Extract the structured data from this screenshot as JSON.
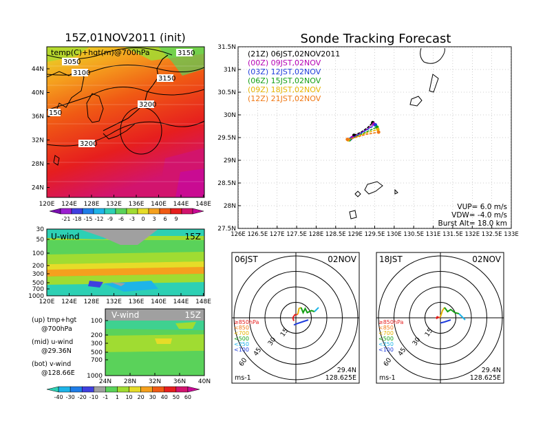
{
  "left_panel": {
    "title": "15Z,01NOV2011 (init)",
    "map_label": "temp(C)+hgt(m)@700hPa",
    "lon_ticks": [
      "120E",
      "124E",
      "128E",
      "132E",
      "136E",
      "140E",
      "144E",
      "148E"
    ],
    "lat_ticks": [
      "44N",
      "40N",
      "36N",
      "32N",
      "28N",
      "24N"
    ],
    "contour_labels": [
      "3050",
      "3100",
      "3150",
      "3200",
      "3200",
      "150",
      "3150"
    ],
    "temp_colorbar": {
      "labels": [
        "-21",
        "-18",
        "-15",
        "-12",
        "-9",
        "-6",
        "-3",
        "0",
        "3",
        "6",
        "9"
      ],
      "colors": [
        "#7a0fb0",
        "#9b1fd0",
        "#3f3fe0",
        "#1e7de8",
        "#1eb4e8",
        "#2dd0b4",
        "#5ad25a",
        "#a0dc32",
        "#e6dc28",
        "#f5a01e",
        "#f05a14",
        "#e61e1e",
        "#d2146e",
        "#c80a96"
      ]
    }
  },
  "uwind": {
    "label": "U-wind",
    "time": "15Z",
    "pressure_ticks": [
      "30",
      "50",
      "100",
      "200",
      "300",
      "500",
      "700",
      "1000"
    ],
    "lon_ticks": [
      "120E",
      "124E",
      "128E",
      "132E",
      "136E",
      "140E",
      "144E",
      "148E"
    ]
  },
  "vwind": {
    "label": "V-wind",
    "time": "15Z",
    "pressure_ticks": [
      "100",
      "200",
      "300",
      "500",
      "700",
      "1000"
    ],
    "lat_ticks": [
      "24N",
      "28N",
      "32N",
      "36N",
      "40N"
    ]
  },
  "notes": [
    {
      "a": "(up) tmp+hgt",
      "b": "@700hPa"
    },
    {
      "a": "(mid) u-wind",
      "b": "@29.36N"
    },
    {
      "a": "(bot) v-wind",
      "b": "@128.66E"
    }
  ],
  "wind_colorbar": {
    "labels": [
      "-40",
      "-30",
      "-20",
      "-10",
      "-1",
      "1",
      "10",
      "20",
      "30",
      "40",
      "50",
      "60"
    ],
    "colors": [
      "#2dd0b4",
      "#1eb4e8",
      "#1e7de8",
      "#3f3fe0",
      "#a0a0a0",
      "#5ad25a",
      "#a0dc32",
      "#e6dc28",
      "#f5a01e",
      "#f05a14",
      "#e61e1e",
      "#d2146e",
      "#c80a96"
    ]
  },
  "tracking": {
    "title": "Sonde Tracking Forecast",
    "legend": [
      {
        "text": "(21Z) 06JST,02NOV2011",
        "color": "#000000"
      },
      {
        "text": "(00Z) 09JST,02NOV",
        "color": "#b400b4"
      },
      {
        "text": "(03Z) 12JST,02NOV",
        "color": "#1e3cdc"
      },
      {
        "text": "(06Z) 15JST,02NOV",
        "color": "#14a014"
      },
      {
        "text": "(09Z) 18JST,02NOV",
        "color": "#e6b400"
      },
      {
        "text": "(12Z) 21JST,02NOV",
        "color": "#f07814"
      }
    ],
    "lat_ticks": [
      "31.5N",
      "31N",
      "30.5N",
      "30N",
      "29.5N",
      "29N",
      "28.5N",
      "28N",
      "27.5N"
    ],
    "lon_ticks": [
      "126E",
      "126.5E",
      "127E",
      "127.5E",
      "128E",
      "128.5E",
      "129E",
      "129.5E",
      "130E",
      "130.5E",
      "131E",
      "131.5E",
      "132E",
      "132.5E",
      "133E"
    ],
    "params": [
      "VUP= 6.0 m/s",
      "VDW= -4.0 m/s",
      "Burst Alt= 18.0 km"
    ],
    "tracks": [
      {
        "name": "(21Z)",
        "color": "#000000",
        "points": [
          [
            128.97,
            29.55
          ],
          [
            129.15,
            29.62
          ],
          [
            129.32,
            29.72
          ],
          [
            129.45,
            29.83
          ]
        ]
      },
      {
        "name": "(00Z)",
        "color": "#b400b4",
        "points": [
          [
            128.92,
            29.5
          ],
          [
            129.1,
            29.58
          ],
          [
            129.3,
            29.68
          ],
          [
            129.48,
            29.8
          ]
        ]
      },
      {
        "name": "(03Z)",
        "color": "#1e3cdc",
        "points": [
          [
            128.88,
            29.47
          ],
          [
            129.05,
            29.55
          ],
          [
            129.28,
            29.66
          ],
          [
            129.52,
            29.78
          ]
        ]
      },
      {
        "name": "(06Z)",
        "color": "#14a014",
        "points": [
          [
            128.85,
            29.45
          ],
          [
            129.05,
            29.53
          ],
          [
            129.3,
            29.63
          ],
          [
            129.56,
            29.73
          ]
        ]
      },
      {
        "name": "(09Z)",
        "color": "#e6b400",
        "points": [
          [
            128.82,
            29.45
          ],
          [
            129.02,
            29.51
          ],
          [
            129.28,
            29.6
          ],
          [
            129.58,
            29.68
          ]
        ]
      },
      {
        "name": "(12Z)",
        "color": "#f07814",
        "points": [
          [
            128.8,
            29.46
          ],
          [
            129.0,
            29.5
          ],
          [
            129.28,
            29.57
          ],
          [
            129.6,
            29.62
          ]
        ]
      }
    ]
  },
  "hodographs": [
    {
      "time": "06JST",
      "date": "02NOV",
      "lat": "29.4N",
      "lon": "128.625E",
      "unit": "ms-1",
      "legend": [
        {
          "text": "≥850hPa",
          "color": "#e61e1e"
        },
        {
          "text": "<850",
          "color": "#f07814"
        },
        {
          "text": "<700",
          "color": "#e6b400"
        },
        {
          "text": "<500",
          "color": "#14a014"
        },
        {
          "text": "<250",
          "color": "#1eb4e8"
        },
        {
          "text": "<100",
          "color": "#1e3cdc"
        }
      ],
      "ring_labels": [
        "15",
        "30",
        "45",
        "60"
      ]
    },
    {
      "time": "18JST",
      "date": "02NOV",
      "lat": "29.4N",
      "lon": "128.625E",
      "unit": "ms-1",
      "legend": [
        {
          "text": "≥850hPa",
          "color": "#e61e1e"
        },
        {
          "text": "<850",
          "color": "#f07814"
        },
        {
          "text": "<700",
          "color": "#e6b400"
        },
        {
          "text": "<500",
          "color": "#14a014"
        },
        {
          "text": "<250",
          "color": "#1eb4e8"
        },
        {
          "text": "<100",
          "color": "#1e3cdc"
        }
      ],
      "ring_labels": [
        "15",
        "30",
        "45",
        "60"
      ]
    }
  ],
  "chart_data": [
    {
      "type": "line",
      "title": "Sonde Tracking Forecast",
      "xlabel": "",
      "ylabel": "",
      "xlim": [
        126,
        133
      ],
      "ylim": [
        27.5,
        31.5
      ],
      "series": [
        {
          "name": "(21Z) 06JST,02NOV2011",
          "x": [
            128.97,
            129.15,
            129.32,
            129.45
          ],
          "y": [
            29.55,
            29.62,
            29.72,
            29.83
          ]
        },
        {
          "name": "(00Z) 09JST,02NOV",
          "x": [
            128.92,
            129.1,
            129.3,
            129.48
          ],
          "y": [
            29.5,
            29.58,
            29.68,
            29.8
          ]
        },
        {
          "name": "(03Z) 12JST,02NOV",
          "x": [
            128.88,
            129.05,
            129.28,
            129.52
          ],
          "y": [
            29.47,
            29.55,
            29.66,
            29.78
          ]
        },
        {
          "name": "(06Z) 15JST,02NOV",
          "x": [
            128.85,
            129.05,
            129.3,
            129.56
          ],
          "y": [
            29.45,
            29.53,
            29.63,
            29.73
          ]
        },
        {
          "name": "(09Z) 18JST,02NOV",
          "x": [
            128.82,
            129.02,
            129.28,
            129.58
          ],
          "y": [
            29.45,
            29.51,
            29.6,
            29.68
          ]
        },
        {
          "name": "(12Z) 21JST,02NOV",
          "x": [
            128.8,
            129.0,
            129.28,
            129.6
          ],
          "y": [
            29.46,
            29.5,
            29.57,
            29.62
          ]
        }
      ]
    },
    {
      "type": "line",
      "title": "06JST 02NOV",
      "xlabel": "",
      "ylabel": "",
      "xlim": [
        -60,
        60
      ],
      "ylim": [
        -60,
        60
      ],
      "series": [
        {
          "name": "≥850hPa",
          "x": [
            -2,
            -3,
            -1,
            1
          ],
          "y": [
            -3,
            0,
            3,
            3
          ]
        },
        {
          "name": "<850",
          "x": [
            1,
            2
          ],
          "y": [
            3,
            4
          ]
        },
        {
          "name": "<700",
          "x": [
            2,
            3,
            5
          ],
          "y": [
            4,
            9,
            10
          ]
        },
        {
          "name": "<500",
          "x": [
            5,
            7,
            9,
            11,
            15,
            18
          ],
          "y": [
            10,
            5,
            9,
            5,
            7,
            6
          ]
        },
        {
          "name": "<250",
          "x": [
            18,
            22
          ],
          "y": [
            6,
            10
          ]
        },
        {
          "name": "<100",
          "x": [
            12,
            6,
            0,
            -2
          ],
          "y": [
            -2,
            -4,
            -6,
            -7
          ]
        }
      ]
    },
    {
      "type": "line",
      "title": "18JST 02NOV",
      "xlabel": "",
      "ylabel": "",
      "xlim": [
        -60,
        60
      ],
      "ylim": [
        -60,
        60
      ],
      "series": [
        {
          "name": "≥850hPa",
          "x": [
            -3,
            -4,
            -3,
            -1
          ],
          "y": [
            -1,
            0,
            1,
            0
          ]
        },
        {
          "name": "<850",
          "x": [
            -1,
            0
          ],
          "y": [
            0,
            1
          ]
        },
        {
          "name": "<700",
          "x": [
            0,
            2,
            4
          ],
          "y": [
            1,
            7,
            10
          ]
        },
        {
          "name": "<500",
          "x": [
            4,
            7,
            10,
            14,
            18
          ],
          "y": [
            10,
            6,
            8,
            5,
            4
          ]
        },
        {
          "name": "<250",
          "x": [
            18,
            24
          ],
          "y": [
            4,
            -2
          ]
        },
        {
          "name": "<100",
          "x": [
            10,
            4,
            0
          ],
          "y": [
            -2,
            -4,
            -5
          ]
        }
      ]
    }
  ]
}
